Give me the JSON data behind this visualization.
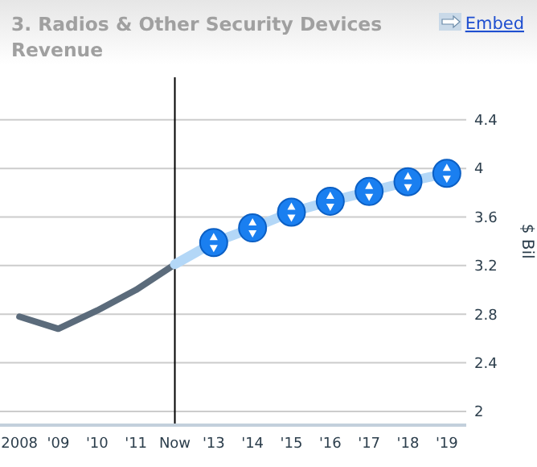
{
  "chart_data": {
    "type": "line",
    "title": "3. Radios & Other Security Devices Revenue",
    "ylabel": "$ Bil",
    "categories": [
      "2008",
      "'09",
      "'10",
      "'11",
      "Now",
      "'13",
      "'14",
      "'15",
      "'16",
      "'17",
      "'18",
      "'19"
    ],
    "series": [
      {
        "color": "#5b6b7b",
        "marker": "none",
        "values": [
          2.78,
          2.68,
          2.83,
          3.0,
          3.21,
          null,
          null,
          null,
          null,
          null,
          null,
          null
        ]
      },
      {
        "color": "#b3d7f7",
        "marker": "circle",
        "values": [
          null,
          null,
          null,
          null,
          3.21,
          3.39,
          3.51,
          3.64,
          3.73,
          3.81,
          3.89,
          3.96
        ]
      }
    ],
    "ylim": [
      1.9,
      4.75
    ],
    "yticks": [
      2,
      2.4,
      2.8,
      3.2,
      3.6,
      4,
      4.4
    ],
    "grid": "y",
    "ref_lines": [
      {
        "axis": "x",
        "value": "Now",
        "color": "#000000"
      }
    ],
    "annotations": [
      "Embed"
    ]
  }
}
